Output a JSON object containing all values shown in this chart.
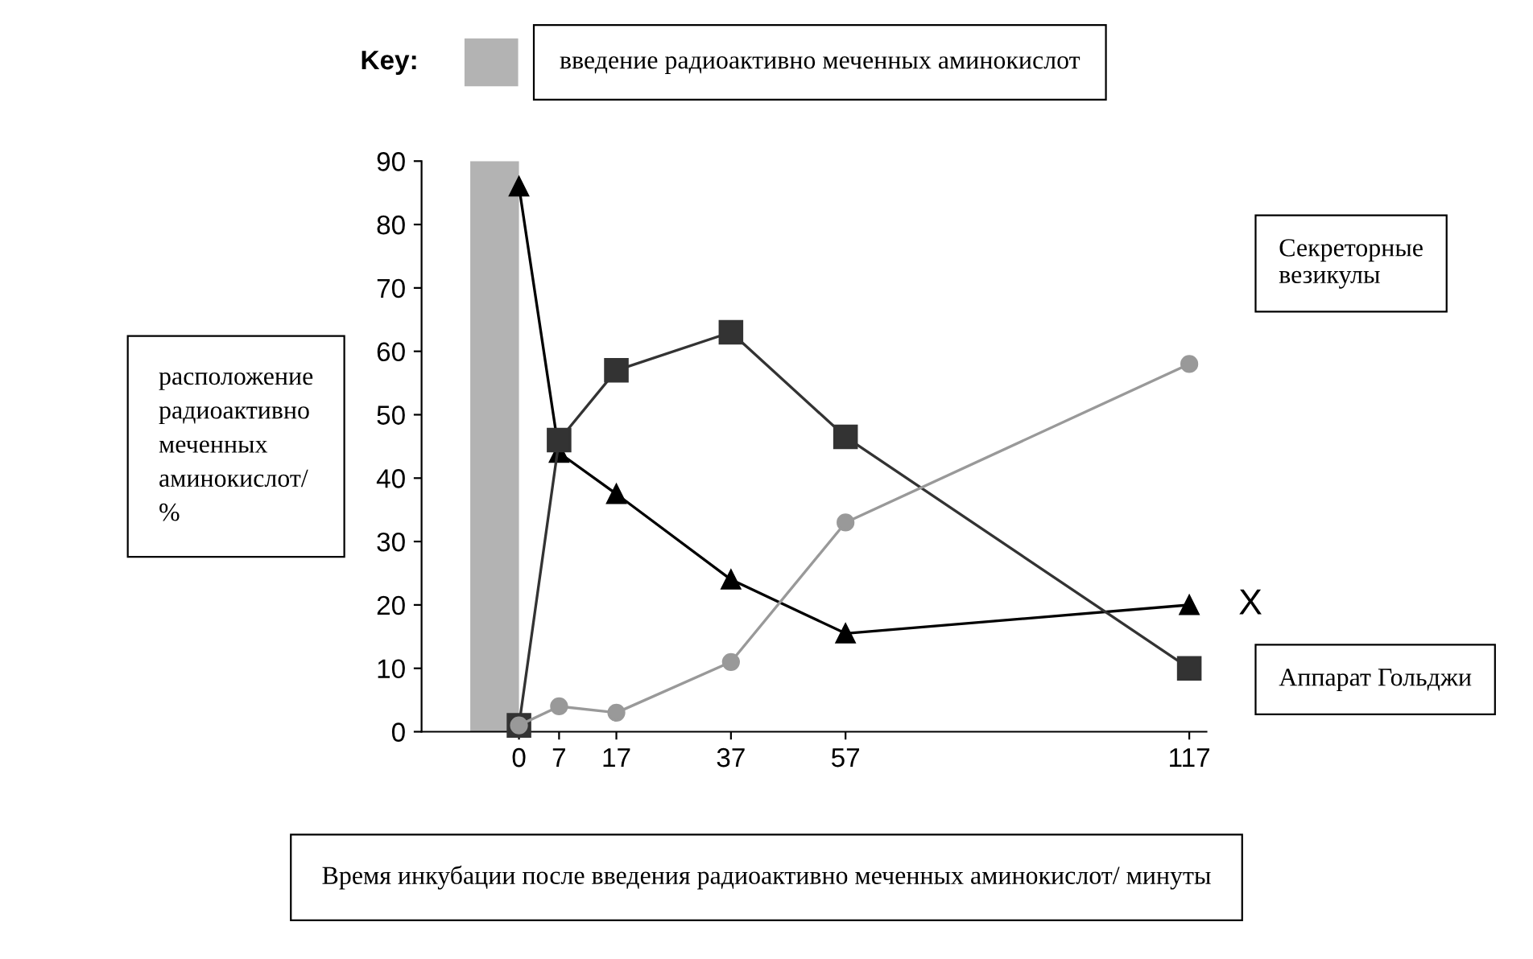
{
  "chart_data": {
    "type": "line",
    "xlabel": "Время инкубации после введения радиоактивно меченных аминокислот/ минуты",
    "ylabel": "расположение радиоактивно меченных аминокислот/ %",
    "legend_title": "Key:",
    "x": [
      0,
      7,
      17,
      37,
      57,
      117
    ],
    "series": [
      {
        "name": "X",
        "color": "#000000",
        "marker": "triangle",
        "values": [
          86,
          44,
          37.5,
          24,
          15.5,
          20
        ]
      },
      {
        "name": "Аппарат Гольджи",
        "color": "#333333",
        "marker": "square",
        "values": [
          1,
          46,
          57,
          63,
          46.5,
          10
        ]
      },
      {
        "name": "Секреторные везикулы",
        "color": "#999999",
        "marker": "circle",
        "values": [
          1,
          4,
          3,
          11,
          33,
          58
        ]
      }
    ],
    "bands": [
      {
        "axis": "x",
        "from": -8.5,
        "to": 0,
        "label": "введение радиоактивно меченных аминокислот",
        "color": "#b3b3b3"
      }
    ],
    "xlim": [
      -17,
      120
    ],
    "ylim": [
      0,
      90
    ],
    "xticks": [
      0,
      7,
      17,
      37,
      57,
      117
    ],
    "yticks": [
      0,
      10,
      20,
      30,
      40,
      50,
      60,
      70,
      80,
      90
    ],
    "grid": false,
    "legend": "top"
  }
}
